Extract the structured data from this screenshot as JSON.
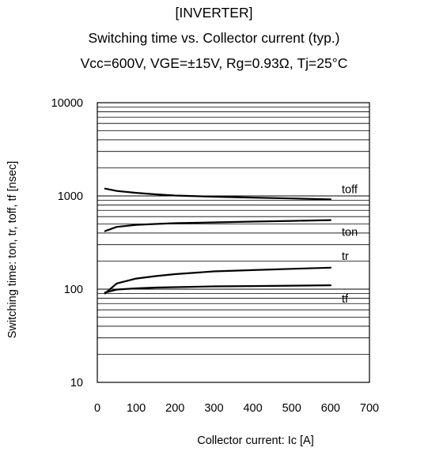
{
  "chart_data": {
    "type": "line",
    "title": "[INVERTER]",
    "subtitle": "Switching time vs. Collector current  (typ.)",
    "conditions": "Vcc=600V, VGE=±15V, Rg=0.93Ω, Tj=25°C",
    "xlabel": "Collector current: Ic [A]",
    "ylabel": "Switching time: ton, tr, toff, tf [nsec]",
    "xlim": [
      0,
      700
    ],
    "ylim": [
      10,
      10000
    ],
    "yscale": "log",
    "grid": true,
    "x_ticks": [
      0,
      100,
      200,
      300,
      400,
      500,
      600,
      700
    ],
    "y_tick_labels": [
      "10",
      "100",
      "1000",
      "10000"
    ],
    "series": [
      {
        "name": "toff",
        "x": [
          20,
          50,
          100,
          150,
          200,
          300,
          400,
          500,
          600
        ],
        "values": [
          1200,
          1130,
          1080,
          1040,
          1010,
          980,
          960,
          940,
          920
        ]
      },
      {
        "name": "ton",
        "x": [
          20,
          50,
          100,
          150,
          200,
          300,
          400,
          500,
          600
        ],
        "values": [
          420,
          465,
          490,
          500,
          510,
          520,
          530,
          540,
          550
        ]
      },
      {
        "name": "tr",
        "x": [
          20,
          50,
          100,
          150,
          200,
          300,
          400,
          500,
          600
        ],
        "values": [
          90,
          115,
          130,
          138,
          145,
          155,
          160,
          165,
          170
        ]
      },
      {
        "name": "tf",
        "x": [
          20,
          50,
          100,
          150,
          200,
          300,
          400,
          500,
          600
        ],
        "values": [
          92,
          99,
          102,
          104,
          105,
          107,
          108,
          109,
          110
        ]
      }
    ]
  }
}
